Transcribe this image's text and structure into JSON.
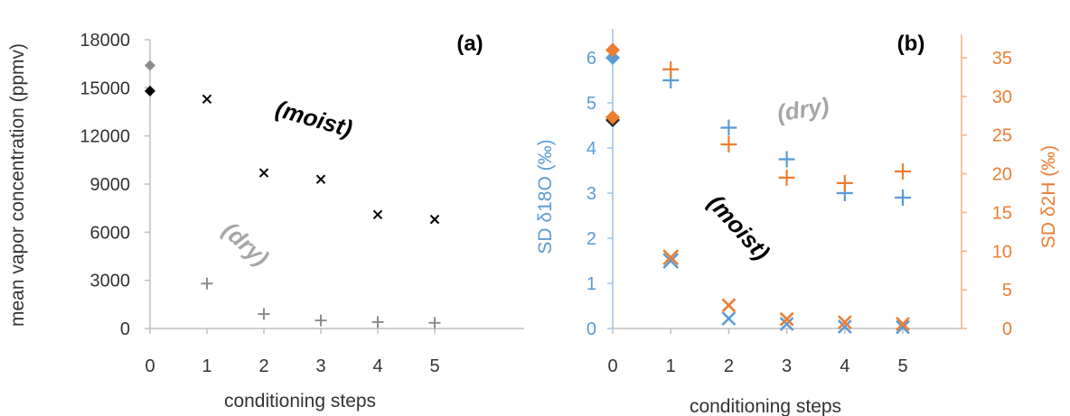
{
  "colors": {
    "black": "#000000",
    "gray": "#8c8c8c",
    "blue": "#5b9bd5",
    "orange": "#ed7d31",
    "axis": "#bfbfbf"
  },
  "chart_data": [
    {
      "type": "scatter",
      "panel_label": "(a)",
      "xlabel": "conditioning steps",
      "ylabel": "mean vapor concentration (ppmv)",
      "xticks": [
        0,
        1,
        2,
        3,
        4,
        5
      ],
      "yticks": [
        0,
        3000,
        6000,
        9000,
        12000,
        15000,
        18000
      ],
      "ytick_labels": [
        "0",
        "3000",
        "6000",
        "9000",
        "12000",
        "15000",
        "18000"
      ],
      "xlim": [
        0,
        6
      ],
      "ylim": [
        0,
        18000
      ],
      "annotations": {
        "moist": "(moist)",
        "dry": "(dry)"
      },
      "series": [
        {
          "condition": "moist",
          "points": [
            [
              0,
              14800
            ],
            [
              1,
              14300
            ],
            [
              2,
              9700
            ],
            [
              3,
              9300
            ],
            [
              4,
              7100
            ],
            [
              5,
              6800
            ]
          ]
        },
        {
          "condition": "dry",
          "points": [
            [
              0,
              16400
            ],
            [
              1,
              2800
            ],
            [
              2,
              900
            ],
            [
              3,
              500
            ],
            [
              4,
              400
            ],
            [
              5,
              350
            ]
          ]
        }
      ]
    },
    {
      "type": "scatter",
      "panel_label": "(b)",
      "xlabel": "conditioning steps",
      "ylabel_left": "SD δ18O (‰)",
      "ylabel_right": "SD δ2H (‰)",
      "xticks": [
        0,
        1,
        2,
        3,
        4,
        5
      ],
      "yticks_left": [
        0,
        1,
        2,
        3,
        4,
        5,
        6
      ],
      "yticks_right": [
        0,
        5,
        10,
        15,
        20,
        25,
        30,
        35
      ],
      "xlim": [
        0,
        6
      ],
      "ylim_left": [
        0,
        6.25
      ],
      "ylim_right": [
        0,
        37
      ],
      "annotations": {
        "moist": "(moist)",
        "dry": "(dry)"
      },
      "series": [
        {
          "name": "d18O",
          "condition": "dry",
          "points": [
            [
              0,
              6.0
            ],
            [
              1,
              5.5
            ],
            [
              2,
              4.45
            ],
            [
              3,
              3.75
            ],
            [
              4,
              3.0
            ],
            [
              5,
              2.9
            ]
          ]
        },
        {
          "name": "d2H",
          "condition": "dry",
          "points": [
            [
              0,
              36.0
            ],
            [
              1,
              33.5
            ],
            [
              2,
              23.8
            ],
            [
              3,
              19.5
            ],
            [
              4,
              18.8
            ],
            [
              5,
              20.3
            ]
          ]
        },
        {
          "name": "d18O",
          "condition": "moist",
          "points": [
            [
              0,
              4.62
            ],
            [
              1,
              1.5
            ],
            [
              2,
              0.22
            ],
            [
              3,
              0.1
            ],
            [
              4,
              0.04
            ],
            [
              5,
              0.03
            ]
          ]
        },
        {
          "name": "d2H",
          "condition": "moist",
          "points": [
            [
              0,
              27.3
            ],
            [
              1,
              9.2
            ],
            [
              2,
              3.0
            ],
            [
              3,
              1.2
            ],
            [
              4,
              0.8
            ],
            [
              5,
              0.6
            ]
          ]
        }
      ]
    }
  ]
}
